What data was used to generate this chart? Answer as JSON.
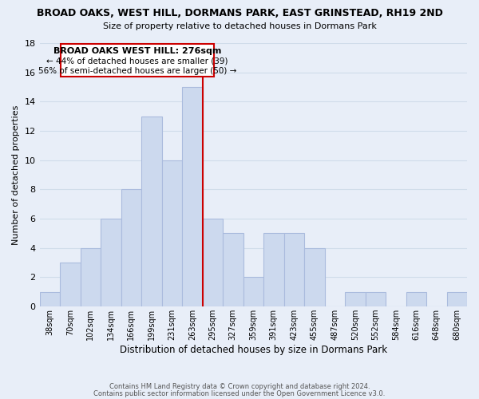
{
  "title": "BROAD OAKS, WEST HILL, DORMANS PARK, EAST GRINSTEAD, RH19 2ND",
  "subtitle": "Size of property relative to detached houses in Dormans Park",
  "xlabel": "Distribution of detached houses by size in Dormans Park",
  "ylabel": "Number of detached properties",
  "bar_color": "#ccd9ee",
  "bar_edge_color": "#aabbdd",
  "bin_labels": [
    "38sqm",
    "70sqm",
    "102sqm",
    "134sqm",
    "166sqm",
    "199sqm",
    "231sqm",
    "263sqm",
    "295sqm",
    "327sqm",
    "359sqm",
    "391sqm",
    "423sqm",
    "455sqm",
    "487sqm",
    "520sqm",
    "552sqm",
    "584sqm",
    "616sqm",
    "648sqm",
    "680sqm"
  ],
  "bar_heights": [
    1,
    3,
    4,
    6,
    8,
    13,
    10,
    15,
    6,
    5,
    2,
    5,
    5,
    4,
    0,
    1,
    1,
    0,
    1,
    0,
    1
  ],
  "ylim": [
    0,
    18
  ],
  "yticks": [
    0,
    2,
    4,
    6,
    8,
    10,
    12,
    14,
    16,
    18
  ],
  "vline_index": 8,
  "annotation_title": "BROAD OAKS WEST HILL: 276sqm",
  "annotation_line1": "← 44% of detached houses are smaller (39)",
  "annotation_line2": "56% of semi-detached houses are larger (50) →",
  "annotation_box_color": "#ffffff",
  "annotation_box_edge_color": "#cc0000",
  "vline_color": "#cc0000",
  "grid_color": "#d0dcea",
  "background_color": "#e8eef8",
  "footer1": "Contains HM Land Registry data © Crown copyright and database right 2024.",
  "footer2": "Contains public sector information licensed under the Open Government Licence v3.0."
}
